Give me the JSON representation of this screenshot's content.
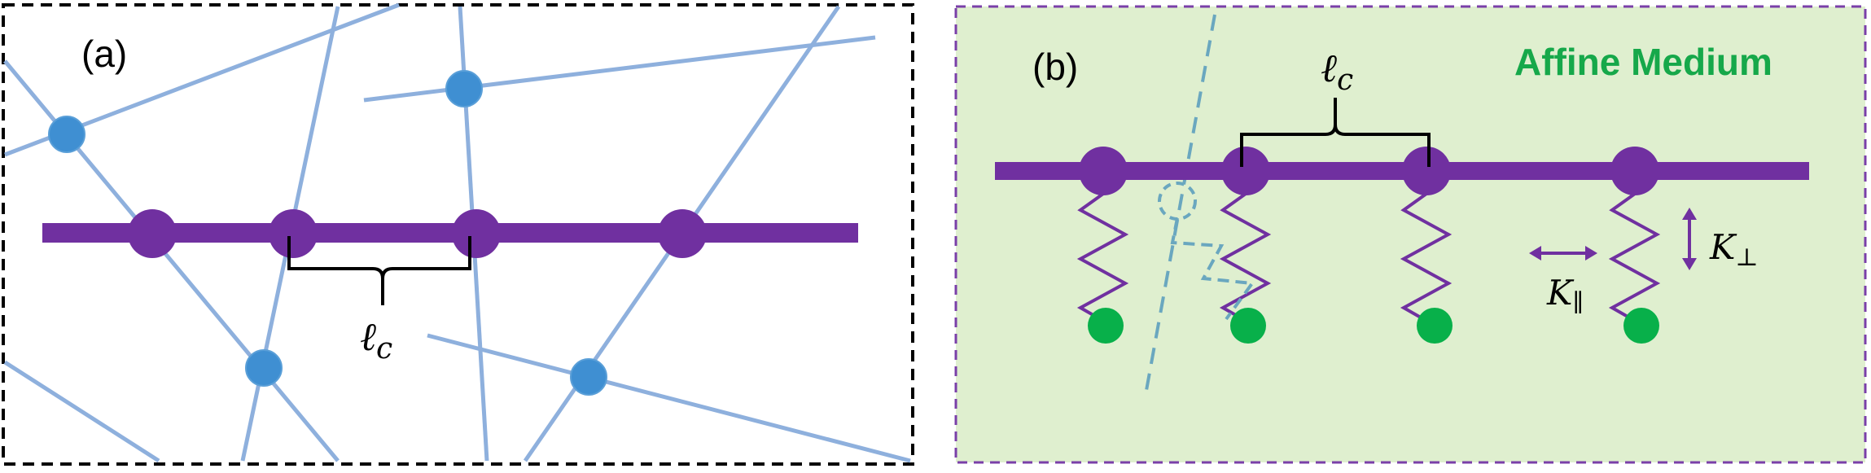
{
  "panel_a": {
    "label": "(a)",
    "length_label": "ℓ",
    "length_sub": "c"
  },
  "panel_b": {
    "label": "(b)",
    "title": "Affine Medium",
    "length_label": "ℓ",
    "length_sub": "c",
    "k_parallel_main": "K",
    "k_parallel_sub": "∥",
    "k_perp_main": "K",
    "k_perp_sub": "⊥"
  },
  "colors": {
    "purple": "#7030a0",
    "network_line": "#8eb0dd",
    "network_node": "#3f8fd2",
    "green_node": "#08b04a",
    "title_green": "#16a84a",
    "medium_bg": "#dfefcf",
    "dashed_teal": "#6aa7bf"
  }
}
